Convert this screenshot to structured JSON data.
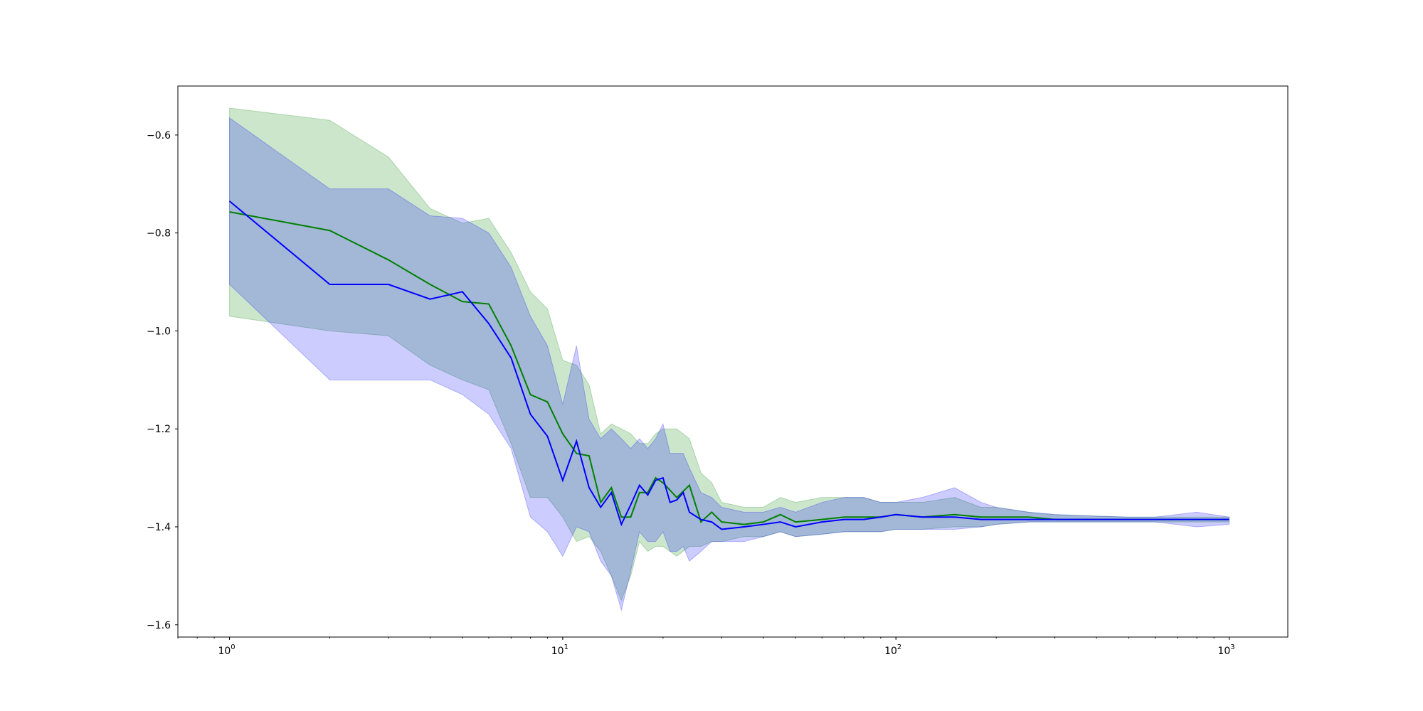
{
  "chart_data": {
    "type": "line",
    "title": "",
    "xlabel": "",
    "ylabel": "",
    "xscale": "log",
    "xlim": [
      0.7,
      1500
    ],
    "ylim": [
      -1.625,
      -0.5
    ],
    "grid": false,
    "legend": "none",
    "x_ticks": [
      {
        "base": "10",
        "exp": "0",
        "value": 1
      },
      {
        "base": "10",
        "exp": "1",
        "value": 10
      },
      {
        "base": "10",
        "exp": "2",
        "value": 100
      },
      {
        "base": "10",
        "exp": "3",
        "value": 1000
      }
    ],
    "y_ticks": [
      {
        "label": "−0.6",
        "value": -0.6
      },
      {
        "label": "−0.8",
        "value": -0.8
      },
      {
        "label": "−1.0",
        "value": -1.0
      },
      {
        "label": "−1.2",
        "value": -1.2
      },
      {
        "label": "−1.4",
        "value": -1.4
      },
      {
        "label": "−1.6",
        "value": -1.6
      }
    ],
    "series": [
      {
        "color": "#008000",
        "band_color": "#008000",
        "x": [
          1,
          2,
          3,
          4,
          5,
          6,
          7,
          8,
          9,
          10,
          11,
          12,
          13,
          14,
          15,
          16,
          17,
          18,
          19,
          20,
          22,
          24,
          26,
          28,
          30,
          35,
          40,
          45,
          50,
          60,
          70,
          80,
          90,
          100,
          120,
          150,
          180,
          200,
          250,
          300,
          400,
          500,
          600,
          800,
          1000
        ],
        "y": [
          -0.757,
          -0.795,
          -0.855,
          -0.905,
          -0.94,
          -0.945,
          -1.03,
          -1.13,
          -1.145,
          -1.21,
          -1.25,
          -1.255,
          -1.35,
          -1.32,
          -1.38,
          -1.38,
          -1.33,
          -1.33,
          -1.3,
          -1.31,
          -1.34,
          -1.315,
          -1.39,
          -1.37,
          -1.39,
          -1.395,
          -1.39,
          -1.375,
          -1.39,
          -1.385,
          -1.38,
          -1.38,
          -1.38,
          -1.375,
          -1.38,
          -1.375,
          -1.38,
          -1.38,
          -1.38,
          -1.385,
          -1.385,
          -1.385,
          -1.385,
          -1.385,
          -1.385
        ],
        "upper": [
          -0.545,
          -0.57,
          -0.645,
          -0.75,
          -0.78,
          -0.77,
          -0.84,
          -0.92,
          -0.955,
          -1.06,
          -1.07,
          -1.11,
          -1.21,
          -1.19,
          -1.2,
          -1.21,
          -1.23,
          -1.23,
          -1.21,
          -1.2,
          -1.2,
          -1.22,
          -1.29,
          -1.31,
          -1.35,
          -1.36,
          -1.36,
          -1.34,
          -1.35,
          -1.34,
          -1.34,
          -1.34,
          -1.35,
          -1.35,
          -1.35,
          -1.34,
          -1.36,
          -1.36,
          -1.37,
          -1.375,
          -1.378,
          -1.38,
          -1.38,
          -1.38,
          -1.38
        ],
        "lower": [
          -0.97,
          -1.0,
          -1.01,
          -1.07,
          -1.1,
          -1.12,
          -1.23,
          -1.34,
          -1.34,
          -1.38,
          -1.43,
          -1.42,
          -1.45,
          -1.5,
          -1.55,
          -1.5,
          -1.43,
          -1.45,
          -1.44,
          -1.44,
          -1.46,
          -1.44,
          -1.44,
          -1.43,
          -1.43,
          -1.42,
          -1.42,
          -1.41,
          -1.42,
          -1.415,
          -1.41,
          -1.41,
          -1.41,
          -1.405,
          -1.405,
          -1.4,
          -1.4,
          -1.395,
          -1.39,
          -1.39,
          -1.39,
          -1.39,
          -1.39,
          -1.39,
          -1.39
        ]
      },
      {
        "color": "#0000ff",
        "band_color": "#0000ff",
        "x": [
          1,
          2,
          3,
          4,
          5,
          6,
          7,
          8,
          9,
          10,
          11,
          12,
          13,
          14,
          15,
          16,
          17,
          18,
          19,
          20,
          21,
          22,
          23,
          24,
          26,
          28,
          30,
          35,
          40,
          45,
          50,
          60,
          70,
          80,
          90,
          100,
          120,
          150,
          180,
          200,
          250,
          300,
          400,
          500,
          600,
          800,
          1000
        ],
        "y": [
          -0.735,
          -0.905,
          -0.905,
          -0.935,
          -0.92,
          -0.985,
          -1.055,
          -1.17,
          -1.215,
          -1.305,
          -1.225,
          -1.32,
          -1.36,
          -1.33,
          -1.395,
          -1.355,
          -1.315,
          -1.335,
          -1.305,
          -1.3,
          -1.35,
          -1.345,
          -1.33,
          -1.37,
          -1.385,
          -1.39,
          -1.405,
          -1.4,
          -1.395,
          -1.39,
          -1.4,
          -1.39,
          -1.385,
          -1.385,
          -1.38,
          -1.375,
          -1.38,
          -1.38,
          -1.385,
          -1.385,
          -1.385,
          -1.385,
          -1.385,
          -1.385,
          -1.385,
          -1.385,
          -1.385
        ],
        "upper": [
          -0.565,
          -0.71,
          -0.71,
          -0.765,
          -0.77,
          -0.8,
          -0.87,
          -0.97,
          -1.03,
          -1.15,
          -1.03,
          -1.18,
          -1.22,
          -1.2,
          -1.22,
          -1.24,
          -1.22,
          -1.24,
          -1.22,
          -1.19,
          -1.25,
          -1.25,
          -1.25,
          -1.28,
          -1.33,
          -1.34,
          -1.36,
          -1.37,
          -1.37,
          -1.36,
          -1.37,
          -1.35,
          -1.34,
          -1.34,
          -1.35,
          -1.35,
          -1.34,
          -1.32,
          -1.35,
          -1.36,
          -1.37,
          -1.375,
          -1.378,
          -1.38,
          -1.38,
          -1.37,
          -1.38
        ],
        "lower": [
          -0.905,
          -1.1,
          -1.1,
          -1.1,
          -1.13,
          -1.17,
          -1.24,
          -1.38,
          -1.41,
          -1.46,
          -1.4,
          -1.41,
          -1.47,
          -1.5,
          -1.57,
          -1.49,
          -1.41,
          -1.43,
          -1.43,
          -1.41,
          -1.45,
          -1.45,
          -1.44,
          -1.47,
          -1.45,
          -1.43,
          -1.43,
          -1.43,
          -1.42,
          -1.41,
          -1.42,
          -1.415,
          -1.41,
          -1.41,
          -1.41,
          -1.405,
          -1.405,
          -1.405,
          -1.4,
          -1.395,
          -1.39,
          -1.39,
          -1.39,
          -1.39,
          -1.39,
          -1.4,
          -1.395
        ]
      }
    ]
  }
}
